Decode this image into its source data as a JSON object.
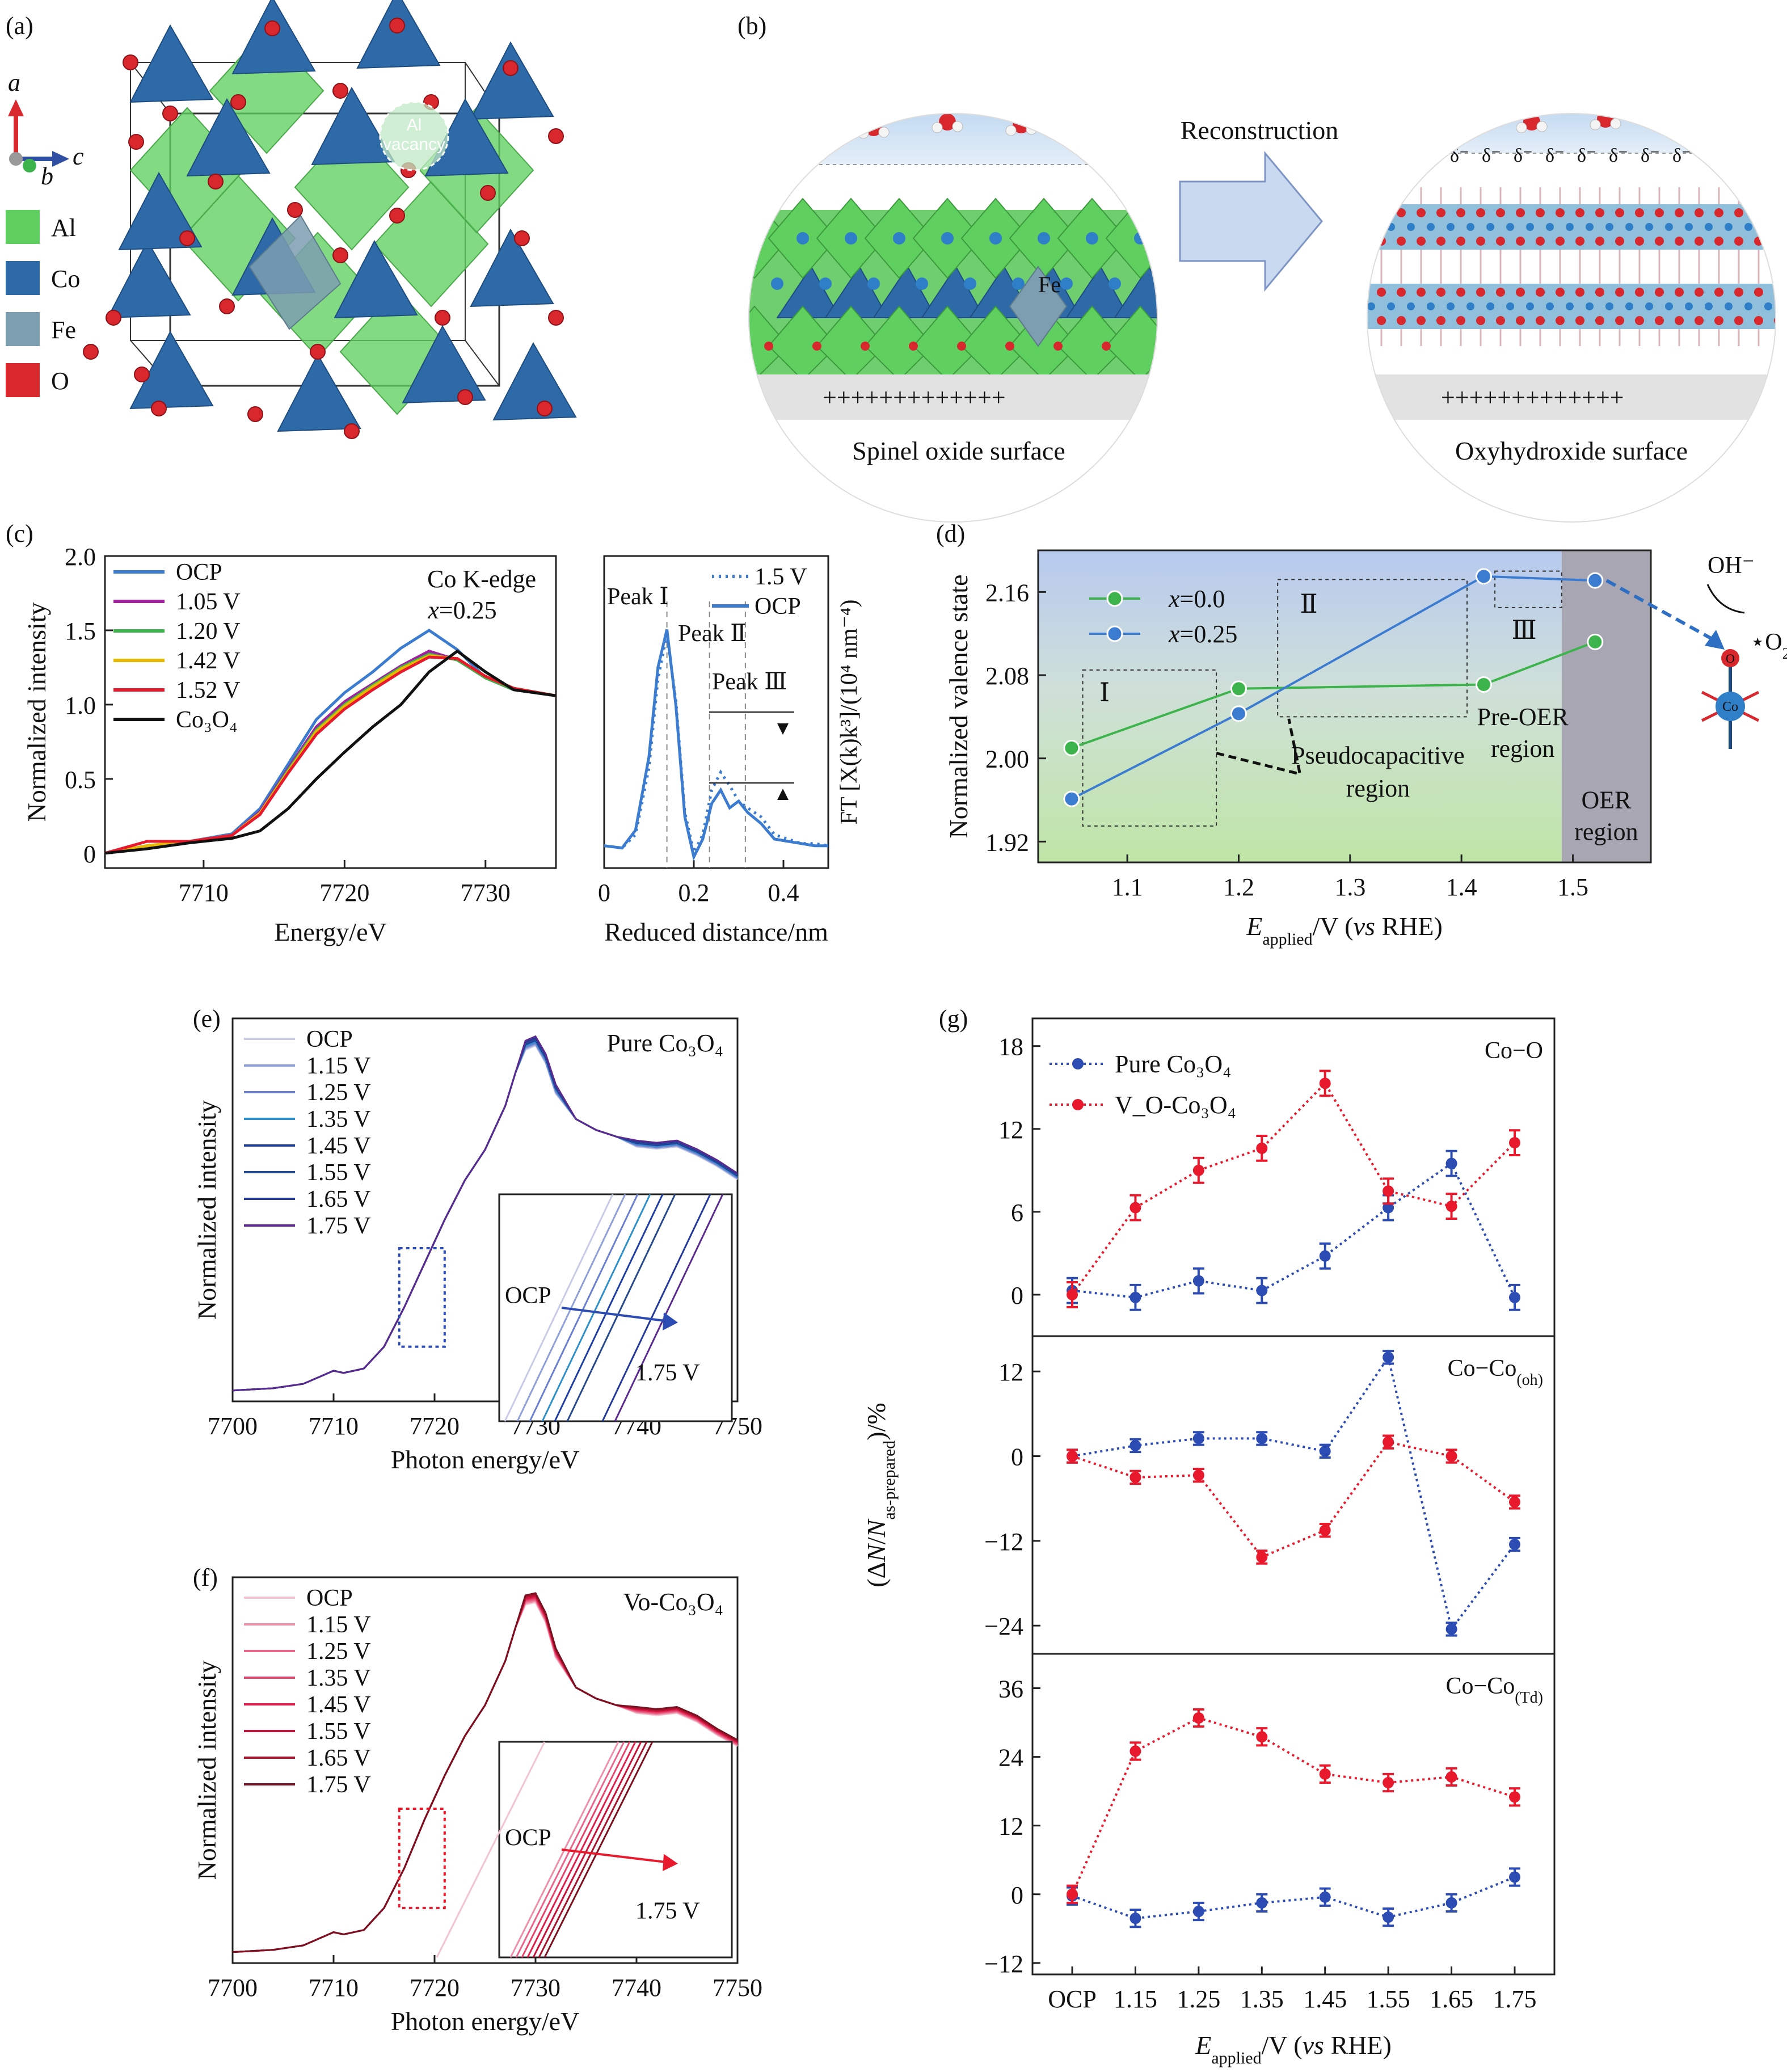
{
  "colors": {
    "al": "#5fcf5f",
    "co": "#2f6aa8",
    "fe": "#7d9db0",
    "o": "#d8272d",
    "blue_series": "#2c4bb3",
    "red_series": "#e8192c",
    "green_series": "#3cb44b",
    "sky": "#cfe2f5",
    "arrow": "#c9d9ef"
  },
  "panel_a": {
    "label": "(a)",
    "axes": {
      "a": "a",
      "b": "b",
      "c": "c"
    },
    "vacancy_label": "Al\nvacancy",
    "legend": [
      {
        "name": "Al",
        "color": "#5fcf5f"
      },
      {
        "name": "Co",
        "color": "#2f6aa8"
      },
      {
        "name": "Fe",
        "color": "#7d9db0"
      },
      {
        "name": "O",
        "color": "#d8272d"
      }
    ]
  },
  "panel_b": {
    "label": "(b)",
    "arrow_label": "Reconstruction",
    "fe_label": "Fe",
    "left_caption": "Spinel oxide surface",
    "right_caption": "Oxyhydroxide surface",
    "delta_text": "δ⁻",
    "plus_text": "+++++++++++++"
  },
  "chart_data": [
    {
      "id": "c_left",
      "panel": "(c)",
      "type": "line",
      "xlabel": "Energy/eV",
      "ylabel": "Normalized intensity",
      "annotation": "Co K-edge",
      "annotation2": "x=0.25",
      "xlim": [
        7703,
        7735
      ],
      "ylim": [
        -0.1,
        2.0
      ],
      "xticks": [
        "7710",
        "7720",
        "7730"
      ],
      "yticks": [
        "0",
        "0.5",
        "1.0",
        "1.5",
        "2.0"
      ],
      "series": [
        {
          "name": "OCP",
          "color": "#3b7bd0",
          "x": [
            7703,
            7706,
            7709,
            7712,
            7714,
            7716,
            7718,
            7720,
            7722,
            7724,
            7726,
            7728,
            7730,
            7732,
            7735
          ],
          "y": [
            0.0,
            0.05,
            0.08,
            0.13,
            0.3,
            0.6,
            0.9,
            1.08,
            1.22,
            1.38,
            1.5,
            1.37,
            1.18,
            1.1,
            1.06
          ]
        },
        {
          "name": "1.05 V",
          "color": "#a020a0",
          "x": [
            7703,
            7706,
            7709,
            7712,
            7714,
            7716,
            7718,
            7720,
            7722,
            7724,
            7726,
            7728,
            7730,
            7732,
            7735
          ],
          "y": [
            0.0,
            0.05,
            0.08,
            0.12,
            0.28,
            0.57,
            0.85,
            1.02,
            1.14,
            1.26,
            1.36,
            1.3,
            1.18,
            1.1,
            1.06
          ]
        },
        {
          "name": "1.20 V",
          "color": "#3cb44b",
          "x": [
            7703,
            7706,
            7709,
            7712,
            7714,
            7716,
            7718,
            7720,
            7722,
            7724,
            7726,
            7728,
            7730,
            7732,
            7735
          ],
          "y": [
            0.0,
            0.05,
            0.08,
            0.12,
            0.27,
            0.56,
            0.83,
            1.0,
            1.13,
            1.25,
            1.34,
            1.3,
            1.18,
            1.1,
            1.06
          ]
        },
        {
          "name": "1.42 V",
          "color": "#e6b800",
          "x": [
            7703,
            7706,
            7709,
            7712,
            7714,
            7716,
            7718,
            7720,
            7722,
            7724,
            7726,
            7728,
            7730,
            7732,
            7735
          ],
          "y": [
            0.0,
            0.05,
            0.08,
            0.12,
            0.27,
            0.55,
            0.82,
            0.99,
            1.12,
            1.24,
            1.33,
            1.31,
            1.19,
            1.11,
            1.06
          ]
        },
        {
          "name": "1.52 V",
          "color": "#e8192c",
          "x": [
            7703,
            7706,
            7709,
            7712,
            7714,
            7716,
            7718,
            7720,
            7722,
            7724,
            7726,
            7728,
            7730,
            7732,
            7735
          ],
          "y": [
            0.0,
            0.08,
            0.08,
            0.12,
            0.26,
            0.54,
            0.8,
            0.97,
            1.1,
            1.22,
            1.32,
            1.31,
            1.19,
            1.11,
            1.06
          ]
        },
        {
          "name": "Co3O4",
          "color": "#111111",
          "x": [
            7703,
            7706,
            7709,
            7712,
            7714,
            7716,
            7718,
            7720,
            7722,
            7724,
            7726,
            7728,
            7730,
            7732,
            7735
          ],
          "y": [
            0.0,
            0.03,
            0.07,
            0.1,
            0.15,
            0.3,
            0.5,
            0.68,
            0.85,
            1.0,
            1.22,
            1.36,
            1.22,
            1.1,
            1.06
          ]
        }
      ],
      "legend": [
        "OCP",
        "1.05 V",
        "1.20 V",
        "1.42 V",
        "1.52 V",
        "Co3O4"
      ],
      "legend_display": [
        "OCP",
        "1.05 V",
        "1.20 V",
        "1.42 V",
        "1.52 V",
        "Co₃O₄"
      ]
    },
    {
      "id": "c_right",
      "type": "line",
      "xlabel": "Reduced distance/nm",
      "ylabel": "FT [X(k)k³]/(10⁴ nm⁻⁴)",
      "xlim": [
        0,
        0.5
      ],
      "xticks": [
        "0",
        "0.2",
        "0.4"
      ],
      "peaks": [
        "Peak Ⅰ",
        "Peak Ⅱ",
        "Peak Ⅲ"
      ],
      "series": [
        {
          "name": "1.5 V",
          "style": "dotted",
          "color": "#3b7bd0",
          "x": [
            0,
            0.04,
            0.07,
            0.1,
            0.12,
            0.14,
            0.16,
            0.18,
            0.2,
            0.22,
            0.24,
            0.26,
            0.28,
            0.3,
            0.32,
            0.35,
            0.38,
            0.41,
            0.44,
            0.47,
            0.5
          ],
          "y": [
            0.05,
            0.04,
            0.1,
            0.4,
            0.8,
            1.0,
            0.7,
            0.2,
            0.02,
            0.1,
            0.3,
            0.38,
            0.32,
            0.25,
            0.22,
            0.18,
            0.1,
            0.08,
            0.06,
            0.06,
            0.05
          ]
        },
        {
          "name": "OCP",
          "style": "solid",
          "color": "#3b7bd0",
          "x": [
            0,
            0.04,
            0.07,
            0.1,
            0.12,
            0.14,
            0.16,
            0.18,
            0.2,
            0.22,
            0.24,
            0.26,
            0.28,
            0.3,
            0.32,
            0.35,
            0.38,
            0.41,
            0.44,
            0.47,
            0.5
          ],
          "y": [
            0.05,
            0.04,
            0.12,
            0.45,
            0.85,
            1.02,
            0.68,
            0.18,
            0.0,
            0.08,
            0.24,
            0.3,
            0.22,
            0.25,
            0.2,
            0.15,
            0.08,
            0.07,
            0.06,
            0.05,
            0.05
          ]
        }
      ],
      "legend": [
        "1.5 V",
        "OCP"
      ]
    },
    {
      "id": "d",
      "panel": "(d)",
      "type": "line",
      "xlabel": "E_applied/V (vs RHE)",
      "ylabel": "Normalized valence state",
      "xlim": [
        1.02,
        1.57
      ],
      "ylim": [
        1.9,
        2.2
      ],
      "xticks": [
        "1.1",
        "1.2",
        "1.3",
        "1.4",
        "1.5"
      ],
      "yticks": [
        "1.92",
        "2.00",
        "2.08",
        "2.16"
      ],
      "series": [
        {
          "name": "x=0.0",
          "color": "#3cb44b",
          "x": [
            1.05,
            1.2,
            1.42,
            1.52
          ],
          "y": [
            2.01,
            2.067,
            2.071,
            2.112
          ]
        },
        {
          "name": "x=0.25",
          "color": "#3b7bd0",
          "x": [
            1.05,
            1.2,
            1.42,
            1.52
          ],
          "y": [
            1.961,
            2.043,
            2.175,
            2.171
          ]
        }
      ],
      "regions": [
        "Ⅰ",
        "Ⅱ",
        "Ⅲ"
      ],
      "labels": {
        "pseudo": "Pseudocapacitive\nregion",
        "preoer": "Pre-OER\nregion",
        "oer": "OER\nregion",
        "oh": "OH⁻",
        "o2": "O",
        "o2sub": "2",
        "co": "Co",
        "o_atom": "O"
      }
    },
    {
      "id": "e",
      "panel": "(e)",
      "type": "line",
      "title": "Pure Co₃O₄",
      "xlabel": "Photon energy/eV",
      "ylabel": "Normalized intensity",
      "xlim": [
        7700,
        7750
      ],
      "xticks": [
        "7700",
        "7710",
        "7720",
        "7730",
        "7740",
        "7750"
      ],
      "series_names": [
        "OCP",
        "1.15 V",
        "1.25 V",
        "1.35 V",
        "1.45 V",
        "1.55 V",
        "1.65 V",
        "1.75 V"
      ],
      "series_colors": [
        "#c7cbe8",
        "#8f9fd8",
        "#6a7fcf",
        "#2f8fc8",
        "#1f3ea3",
        "#274a8c",
        "#23399a",
        "#5b2a8e"
      ],
      "spectrum": {
        "x": [
          7700,
          7704,
          7707,
          7709,
          7710,
          7711,
          7713,
          7715,
          7717,
          7719,
          7721,
          7723,
          7725,
          7727,
          7728,
          7729,
          7730,
          7731,
          7732,
          7734,
          7736,
          7738,
          7740,
          7742,
          7744,
          7746,
          7748,
          7750
        ],
        "y": [
          0.0,
          0.01,
          0.03,
          0.07,
          0.09,
          0.08,
          0.1,
          0.2,
          0.38,
          0.58,
          0.78,
          0.96,
          1.1,
          1.3,
          1.45,
          1.58,
          1.6,
          1.52,
          1.38,
          1.24,
          1.19,
          1.16,
          1.13,
          1.12,
          1.13,
          1.09,
          1.04,
          0.98
        ]
      },
      "inset_labels": {
        "start": "OCP",
        "end": "1.75 V"
      }
    },
    {
      "id": "f",
      "panel": "(f)",
      "type": "line",
      "title": "Vo-Co₃O₄",
      "xlabel": "Photon energy/eV",
      "ylabel": "Normalized intensity",
      "xlim": [
        7700,
        7750
      ],
      "xticks": [
        "7700",
        "7710",
        "7720",
        "7730",
        "7740",
        "7750"
      ],
      "series_names": [
        "OCP",
        "1.15 V",
        "1.25 V",
        "1.35 V",
        "1.45 V",
        "1.55 V",
        "1.65 V",
        "1.75 V"
      ],
      "series_colors": [
        "#f2c4cf",
        "#ee8fa8",
        "#e8668a",
        "#e6456e",
        "#e0204c",
        "#c8103a",
        "#a4142c",
        "#7a1020"
      ],
      "spectrum": {
        "x": [
          7700,
          7704,
          7707,
          7709,
          7710,
          7711,
          7713,
          7715,
          7717,
          7719,
          7721,
          7723,
          7725,
          7727,
          7728,
          7729,
          7730,
          7731,
          7732,
          7734,
          7736,
          7738,
          7740,
          7742,
          7744,
          7746,
          7748,
          7750
        ],
        "y": [
          0.0,
          0.01,
          0.03,
          0.07,
          0.09,
          0.08,
          0.1,
          0.2,
          0.38,
          0.6,
          0.8,
          0.98,
          1.12,
          1.32,
          1.47,
          1.6,
          1.61,
          1.52,
          1.36,
          1.2,
          1.15,
          1.12,
          1.1,
          1.09,
          1.1,
          1.06,
          1.0,
          0.95
        ]
      },
      "inset_labels": {
        "start": "OCP",
        "end": "1.75 V"
      }
    },
    {
      "id": "g",
      "panel": "(g)",
      "type": "line",
      "xlabel": "E_applied/V (vs RHE)",
      "ylabel": "(ΔN/N_as-prepared)/%",
      "categories": [
        "OCP",
        "1.15",
        "1.25",
        "1.35",
        "1.45",
        "1.55",
        "1.65",
        "1.75"
      ],
      "legend": [
        "Pure Co₃O₄",
        "V_O-Co₃O₄"
      ],
      "subplots": [
        {
          "title": "Co−O",
          "ylim": [
            -3,
            20
          ],
          "yticks": [
            "0",
            "6",
            "12",
            "18"
          ],
          "series": [
            {
              "name": "Pure Co3O4",
              "color": "#2c4bb3",
              "values": [
                0.3,
                -0.2,
                1.0,
                0.3,
                2.8,
                6.3,
                9.5,
                -0.2
              ],
              "err": 0.9
            },
            {
              "name": "VO-Co3O4",
              "color": "#e8192c",
              "values": [
                0.0,
                6.3,
                9.0,
                10.6,
                15.3,
                7.5,
                6.4,
                11.0
              ],
              "err": 0.9
            }
          ]
        },
        {
          "title": "Co−Co",
          "title_sub": "(oh)",
          "ylim": [
            -28,
            17
          ],
          "yticks": [
            "−24",
            "−12",
            "0",
            "12"
          ],
          "series": [
            {
              "name": "Pure Co3O4",
              "color": "#2c4bb3",
              "values": [
                0.0,
                1.5,
                2.5,
                2.5,
                0.7,
                14.0,
                -24.5,
                -12.5
              ],
              "err": 0.9
            },
            {
              "name": "VO-Co3O4",
              "color": "#e8192c",
              "values": [
                0.0,
                -3.0,
                -2.7,
                -14.3,
                -10.5,
                2.0,
                0.0,
                -6.5
              ],
              "err": 0.9
            }
          ]
        },
        {
          "title": "Co−Co",
          "title_sub": "(Td)",
          "ylim": [
            -14,
            42
          ],
          "yticks": [
            "−12",
            "0",
            "12",
            "24",
            "36"
          ],
          "series": [
            {
              "name": "Pure Co3O4",
              "color": "#2c4bb3",
              "values": [
                -0.3,
                -4.2,
                -3.0,
                -1.5,
                -0.5,
                -4.0,
                -1.5,
                3.0
              ],
              "err": 1.5
            },
            {
              "name": "VO-Co3O4",
              "color": "#e8192c",
              "values": [
                0.0,
                25.0,
                30.8,
                27.5,
                21.0,
                19.5,
                20.5,
                17.0
              ],
              "err": 1.5
            }
          ]
        }
      ]
    }
  ]
}
